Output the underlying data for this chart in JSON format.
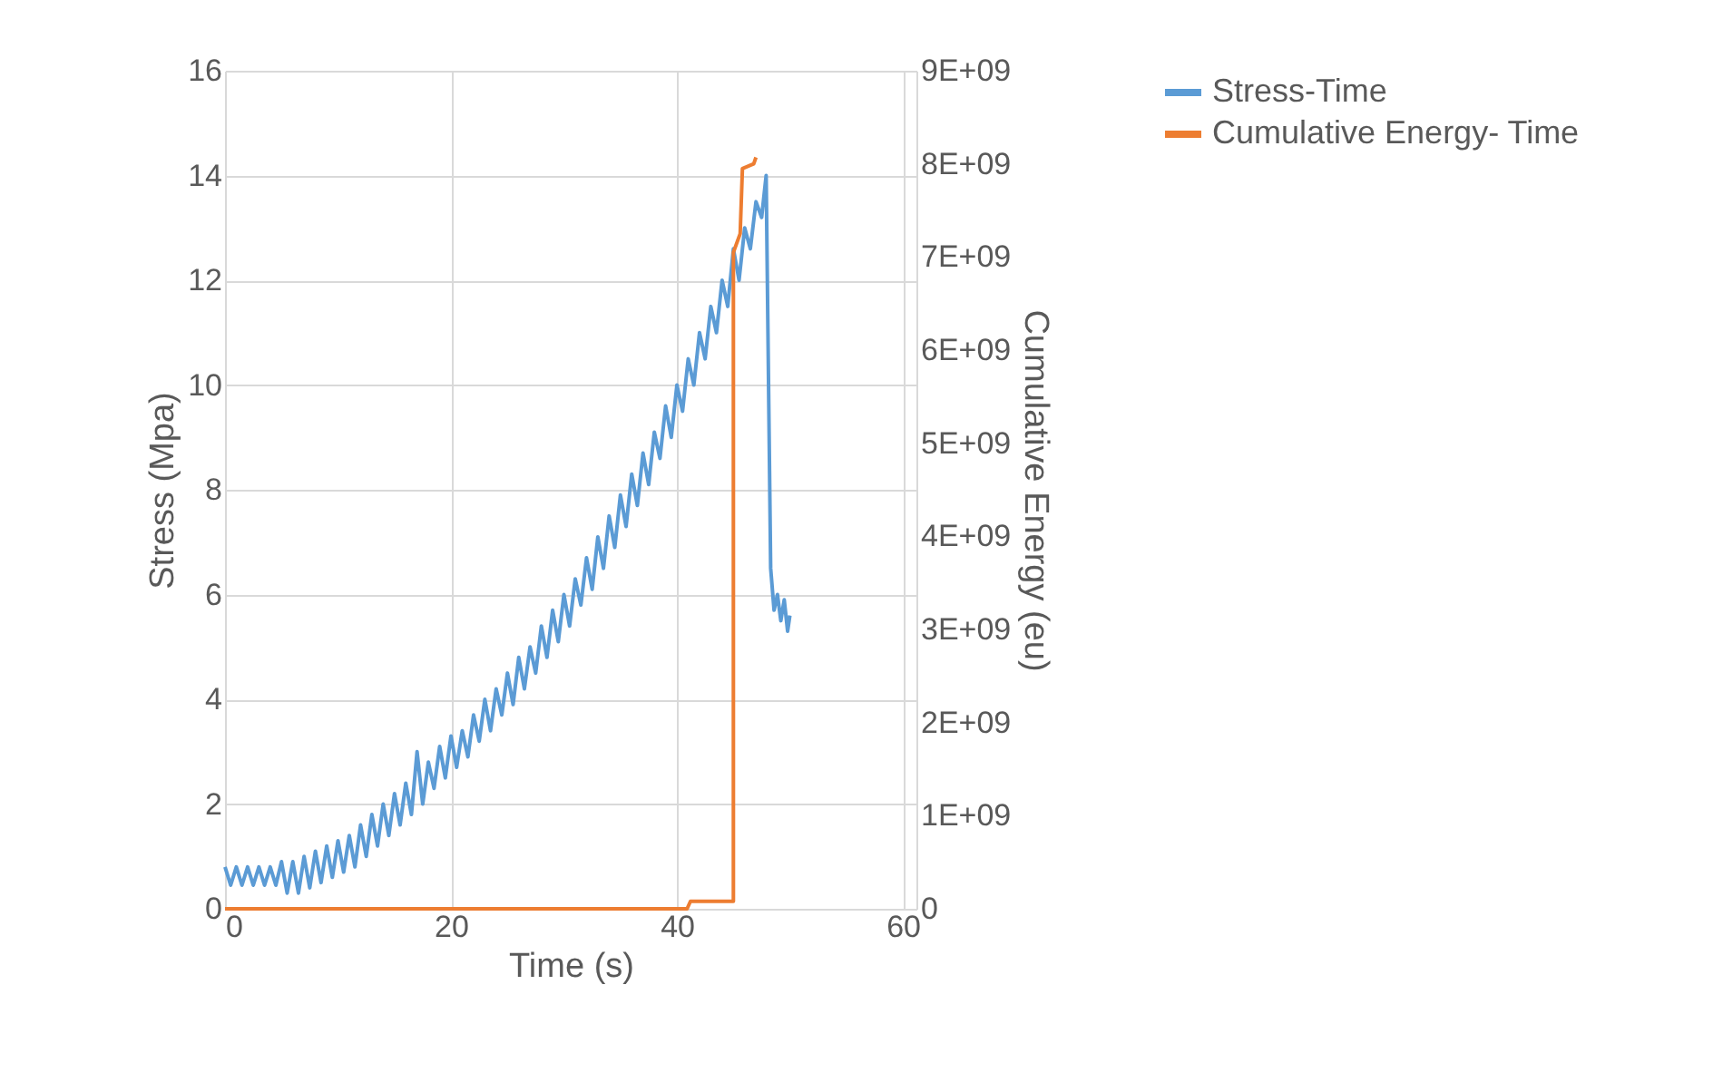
{
  "chart_data": {
    "type": "line",
    "xlabel": "Time (s)",
    "ylabel": "Stress (Mpa)",
    "y2label": "Cumulative Energy (eu)",
    "xlim": [
      0,
      61.2
    ],
    "xticks": [
      0,
      20,
      40,
      60
    ],
    "ylim": [
      0,
      16
    ],
    "yticks": [
      0,
      2,
      4,
      6,
      8,
      10,
      12,
      14,
      16
    ],
    "y2lim": [
      0,
      9000000000
    ],
    "y2ticks": [
      0,
      {
        "value": 1000000000,
        "label": "1E+09"
      },
      {
        "value": 2000000000,
        "label": "2E+09"
      },
      {
        "value": 3000000000,
        "label": "3E+09"
      },
      {
        "value": 4000000000,
        "label": "4E+09"
      },
      {
        "value": 5000000000,
        "label": "5E+09"
      },
      {
        "value": 6000000000,
        "label": "6E+09"
      },
      {
        "value": 7000000000,
        "label": "7E+09"
      },
      {
        "value": 8000000000,
        "label": "8E+09"
      },
      {
        "value": 9000000000,
        "label": "9E+09"
      }
    ],
    "grid": true,
    "legend": "right",
    "marker": "none",
    "line_style": "solid",
    "series": [
      {
        "name": "Stress-Time",
        "color": "#5b9bd5",
        "x": [
          0,
          0.5,
          1,
          1.5,
          2,
          2.5,
          3,
          3.5,
          4,
          4.5,
          5,
          5.5,
          6,
          6.5,
          7,
          7.5,
          8,
          8.5,
          9,
          9.5,
          10,
          10.5,
          11,
          11.5,
          12,
          12.5,
          13,
          13.5,
          14,
          14.5,
          15,
          15.5,
          16,
          16.5,
          17,
          17.5,
          18,
          18.5,
          19,
          19.5,
          20,
          20.5,
          21,
          21.5,
          22,
          22.5,
          23,
          23.5,
          24,
          24.5,
          25,
          25.5,
          26,
          26.5,
          27,
          27.5,
          28,
          28.5,
          29,
          29.5,
          30,
          30.5,
          31,
          31.5,
          32,
          32.5,
          33,
          33.5,
          34,
          34.5,
          35,
          35.5,
          36,
          36.5,
          37,
          37.5,
          38,
          38.5,
          39,
          39.5,
          40,
          40.5,
          41,
          41.5,
          42,
          42.5,
          43,
          43.5,
          44,
          44.5,
          45,
          45.5,
          46,
          46.5,
          47,
          47.5,
          47.9,
          48.3,
          48.6,
          48.9,
          49.2,
          49.5,
          49.8,
          50.0
        ],
        "values": [
          0.8,
          0.45,
          0.8,
          0.45,
          0.8,
          0.45,
          0.8,
          0.45,
          0.8,
          0.45,
          0.9,
          0.3,
          0.9,
          0.3,
          1.0,
          0.4,
          1.1,
          0.5,
          1.2,
          0.6,
          1.3,
          0.7,
          1.4,
          0.8,
          1.6,
          1.0,
          1.8,
          1.2,
          2.0,
          1.4,
          2.2,
          1.6,
          2.4,
          1.8,
          3.0,
          2.0,
          2.8,
          2.3,
          3.1,
          2.5,
          3.3,
          2.7,
          3.4,
          2.9,
          3.7,
          3.2,
          4.0,
          3.4,
          4.2,
          3.7,
          4.5,
          3.9,
          4.8,
          4.2,
          5.0,
          4.5,
          5.4,
          4.8,
          5.7,
          5.1,
          6.0,
          5.4,
          6.3,
          5.8,
          6.7,
          6.1,
          7.1,
          6.5,
          7.5,
          6.9,
          7.9,
          7.3,
          8.3,
          7.7,
          8.7,
          8.1,
          9.1,
          8.6,
          9.6,
          9.0,
          10.0,
          9.5,
          10.5,
          10.0,
          11.0,
          10.5,
          11.5,
          11.0,
          12.0,
          11.5,
          12.6,
          12.0,
          13.0,
          12.6,
          13.5,
          13.2,
          14.0,
          6.5,
          5.7,
          6.0,
          5.5,
          5.9,
          5.3,
          5.6
        ]
      },
      {
        "name": "Cumulative Energy- Time",
        "color": "#ed7d31",
        "axis": "y2",
        "x": [
          0,
          40.9,
          41.2,
          45.0,
          45.0,
          45.6,
          45.8,
          46.8,
          47.0
        ],
        "values": [
          0,
          0,
          80000000,
          80000000,
          7050000000,
          7250000000,
          7950000000,
          8000000000,
          8070000000
        ]
      }
    ]
  }
}
